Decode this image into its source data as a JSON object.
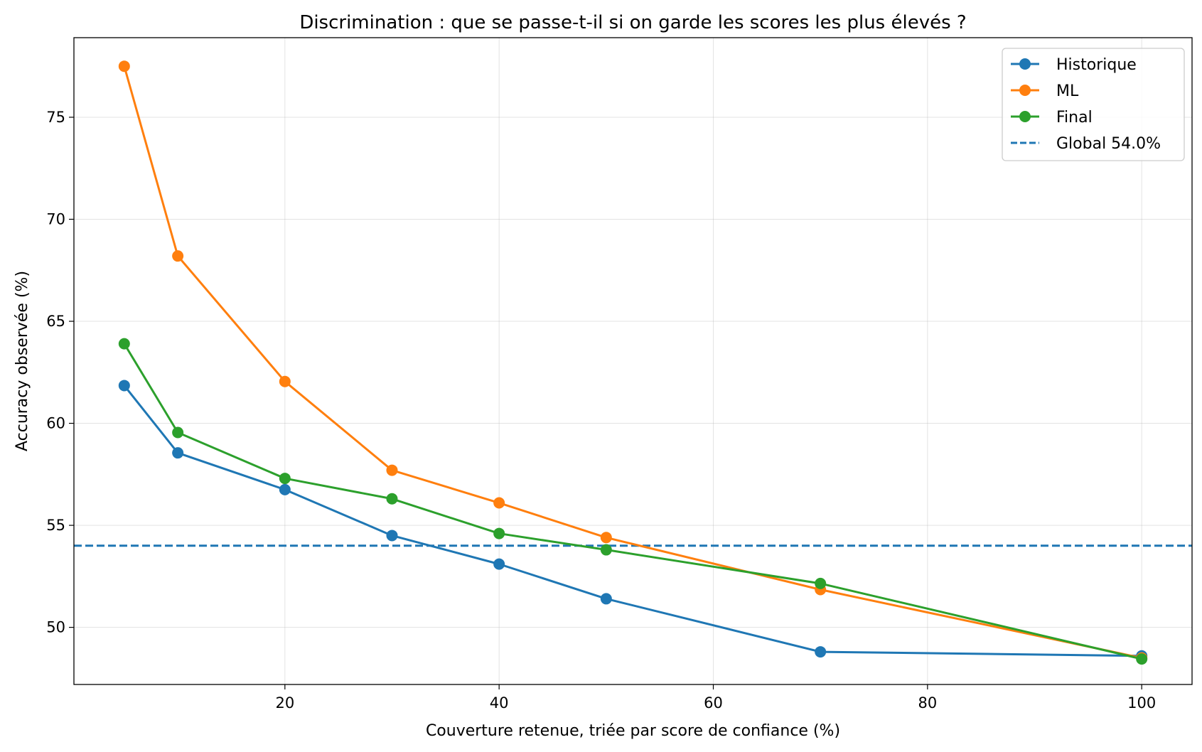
{
  "chart_data": {
    "type": "line",
    "title": "Discrimination : que se passe-t-il si on garde les scores les plus élevés ?",
    "xlabel": "Couverture retenue, triée par score de confiance (%)",
    "ylabel": "Accuracy observée (%)",
    "xlim": [
      0.3,
      104.7
    ],
    "ylim": [
      47.2,
      78.9
    ],
    "xticks": [
      20,
      40,
      60,
      80,
      100
    ],
    "yticks": [
      50,
      55,
      60,
      65,
      70,
      75
    ],
    "grid": true,
    "legend_position": "top-right",
    "x": [
      5,
      10,
      20,
      30,
      40,
      50,
      70,
      100
    ],
    "series": [
      {
        "name": "Historique",
        "color": "#1f77b4",
        "values": [
          61.85,
          58.55,
          56.75,
          54.5,
          53.1,
          51.4,
          48.8,
          48.6
        ]
      },
      {
        "name": "ML",
        "color": "#ff7f0e",
        "values": [
          77.5,
          68.2,
          62.05,
          57.7,
          56.1,
          54.4,
          51.85,
          48.5
        ]
      },
      {
        "name": "Final",
        "color": "#2ca02c",
        "values": [
          63.9,
          59.55,
          57.3,
          56.3,
          54.6,
          53.8,
          52.15,
          48.45
        ]
      }
    ],
    "reference_line": {
      "name": "Global 54.0%",
      "value": 54.0,
      "color": "#1f77b4",
      "style": "dashed"
    }
  }
}
